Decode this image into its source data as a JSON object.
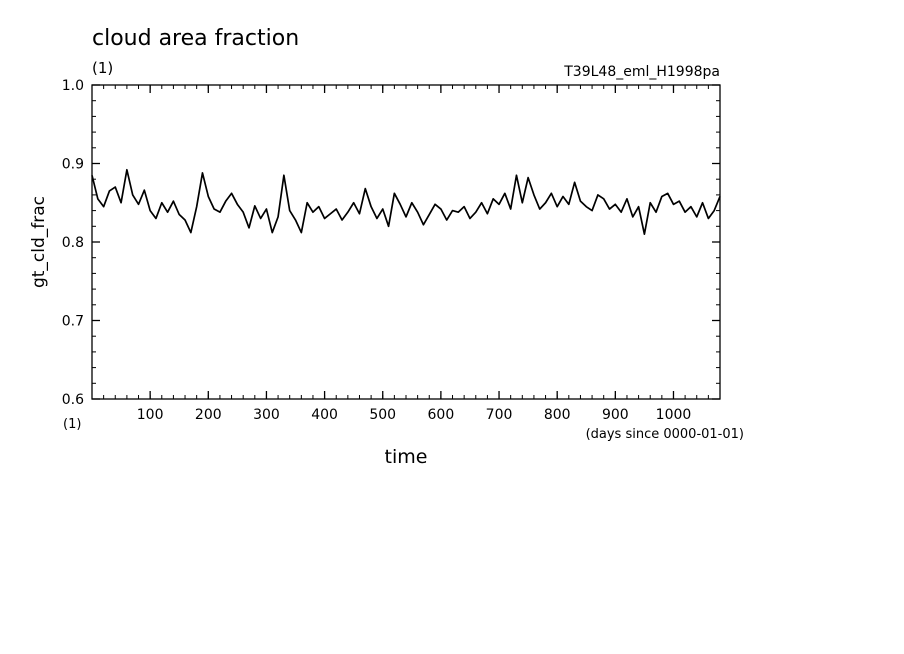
{
  "chart_data": {
    "type": "line",
    "title": "cloud area fraction",
    "subtitle": "(1)",
    "run_label": "T39L48_eml_H1998pa",
    "xlabel": "time",
    "x_units": "(days since 0000-01-01)",
    "ylabel": "gt_cld_frac",
    "y_units": "(1)",
    "xlim": [
      0,
      1080
    ],
    "ylim": [
      0.6,
      1.0
    ],
    "x_ticks": [
      100,
      200,
      300,
      400,
      500,
      600,
      700,
      800,
      900,
      1000
    ],
    "x_tick_labels": [
      "100",
      "200",
      "300",
      "400",
      "500",
      "600",
      "700",
      "800",
      "900",
      "1000"
    ],
    "y_ticks": [
      0.6,
      0.7,
      0.8,
      0.9,
      1.0
    ],
    "y_tick_labels": [
      "0.6",
      "0.7",
      "0.8",
      "0.9",
      "1.0"
    ],
    "grid": false,
    "series": [
      {
        "color": "#000000",
        "x": [
          0,
          10,
          20,
          30,
          40,
          50,
          60,
          70,
          80,
          90,
          100,
          110,
          120,
          130,
          140,
          150,
          160,
          170,
          180,
          190,
          200,
          210,
          220,
          230,
          240,
          250,
          260,
          270,
          280,
          290,
          300,
          310,
          320,
          330,
          340,
          350,
          360,
          370,
          380,
          390,
          400,
          410,
          420,
          430,
          440,
          450,
          460,
          470,
          480,
          490,
          500,
          510,
          520,
          530,
          540,
          550,
          560,
          570,
          580,
          590,
          600,
          610,
          620,
          630,
          640,
          650,
          660,
          670,
          680,
          690,
          700,
          710,
          720,
          730,
          740,
          750,
          760,
          770,
          780,
          790,
          800,
          810,
          820,
          830,
          840,
          850,
          860,
          870,
          880,
          890,
          900,
          910,
          920,
          930,
          940,
          950,
          960,
          970,
          980,
          990,
          1000,
          1010,
          1020,
          1030,
          1040,
          1050,
          1060,
          1070,
          1080
        ],
        "values": [
          0.885,
          0.855,
          0.845,
          0.865,
          0.87,
          0.85,
          0.892,
          0.86,
          0.848,
          0.866,
          0.84,
          0.83,
          0.85,
          0.838,
          0.852,
          0.835,
          0.828,
          0.812,
          0.845,
          0.888,
          0.858,
          0.842,
          0.838,
          0.852,
          0.862,
          0.848,
          0.838,
          0.818,
          0.846,
          0.83,
          0.842,
          0.812,
          0.832,
          0.885,
          0.84,
          0.828,
          0.812,
          0.85,
          0.838,
          0.845,
          0.83,
          0.836,
          0.842,
          0.828,
          0.838,
          0.85,
          0.836,
          0.868,
          0.845,
          0.83,
          0.842,
          0.82,
          0.862,
          0.848,
          0.832,
          0.85,
          0.838,
          0.822,
          0.835,
          0.848,
          0.842,
          0.828,
          0.84,
          0.838,
          0.845,
          0.83,
          0.838,
          0.85,
          0.836,
          0.855,
          0.848,
          0.862,
          0.842,
          0.885,
          0.85,
          0.882,
          0.86,
          0.842,
          0.85,
          0.862,
          0.845,
          0.858,
          0.848,
          0.876,
          0.852,
          0.845,
          0.84,
          0.86,
          0.855,
          0.842,
          0.848,
          0.838,
          0.855,
          0.832,
          0.845,
          0.81,
          0.85,
          0.838,
          0.858,
          0.862,
          0.848,
          0.852,
          0.838,
          0.845,
          0.832,
          0.85,
          0.83,
          0.84,
          0.858
        ]
      }
    ]
  }
}
